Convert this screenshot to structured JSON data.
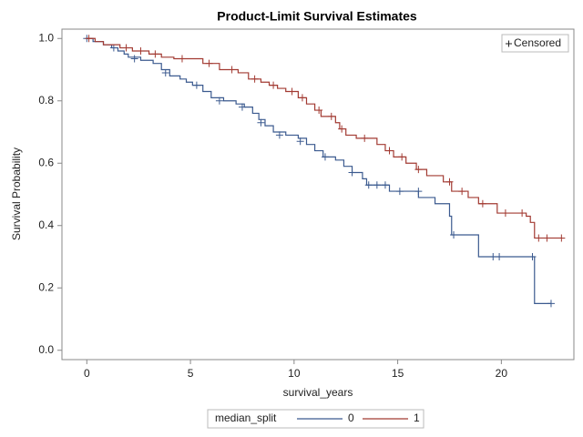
{
  "chart_data": {
    "type": "step",
    "title": "Product-Limit Survival Estimates",
    "x_label": "survival_years",
    "y_label": "Survival Probability",
    "legend_title": "median_split",
    "censored_label": "Censored",
    "xlim": [
      -1.2,
      23.5
    ],
    "ylim": [
      -0.03,
      1.03
    ],
    "xticks": [
      0,
      5,
      10,
      15,
      20
    ],
    "yticks": [
      {
        "value": 0,
        "label": "0.0"
      },
      0.2,
      0.4,
      0.6,
      0.8,
      {
        "value": 1,
        "label": "1.0"
      }
    ],
    "series": [
      {
        "name": "0",
        "color": "#3b5a8f",
        "x": [
          0,
          0.3,
          0.8,
          1.2,
          1.5,
          1.8,
          2.0,
          2.6,
          3.2,
          3.6,
          4.0,
          4.5,
          4.8,
          5.1,
          5.6,
          6.0,
          6.6,
          7.2,
          7.6,
          8.0,
          8.3,
          8.6,
          9.0,
          9.6,
          10.2,
          10.6,
          11.0,
          11.4,
          12.0,
          12.4,
          12.8,
          13.3,
          13.5,
          14.6,
          16.0,
          16.8,
          17.5,
          17.6,
          18.9,
          21.6
        ],
        "values": [
          1.0,
          0.99,
          0.98,
          0.97,
          0.96,
          0.95,
          0.94,
          0.93,
          0.92,
          0.9,
          0.88,
          0.87,
          0.86,
          0.85,
          0.83,
          0.81,
          0.8,
          0.79,
          0.78,
          0.76,
          0.74,
          0.72,
          0.7,
          0.69,
          0.68,
          0.66,
          0.64,
          0.62,
          0.61,
          0.59,
          0.57,
          0.55,
          0.53,
          0.51,
          0.49,
          0.47,
          0.43,
          0.37,
          0.3,
          0.15
        ],
        "censored": {
          "x": [
            0,
            1.3,
            2.3,
            3.8,
            5.3,
            6.4,
            7.5,
            8.4,
            9.3,
            10.3,
            11.5,
            12.8,
            13.6,
            14.0,
            14.4,
            15.1,
            16.0,
            17.7,
            19.6,
            19.9,
            21.5,
            22.4
          ],
          "values": [
            1.0,
            0.97,
            0.935,
            0.89,
            0.85,
            0.8,
            0.78,
            0.73,
            0.69,
            0.67,
            0.62,
            0.57,
            0.53,
            0.53,
            0.53,
            0.51,
            0.51,
            0.37,
            0.3,
            0.3,
            0.3,
            0.15
          ]
        }
      },
      {
        "name": "1",
        "color": "#a23a32",
        "x": [
          0,
          0.4,
          0.8,
          1.6,
          2.2,
          3.0,
          3.6,
          4.2,
          5.6,
          6.4,
          7.3,
          7.8,
          8.4,
          8.8,
          9.2,
          9.6,
          10.2,
          10.6,
          11.0,
          11.3,
          12.0,
          12.2,
          12.5,
          13.0,
          14.0,
          14.4,
          14.8,
          15.4,
          15.9,
          16.4,
          17.2,
          17.6,
          18.4,
          18.9,
          19.8,
          21.2,
          21.4,
          21.6
        ],
        "values": [
          1.0,
          0.99,
          0.98,
          0.97,
          0.96,
          0.95,
          0.94,
          0.935,
          0.92,
          0.9,
          0.89,
          0.87,
          0.86,
          0.85,
          0.84,
          0.83,
          0.81,
          0.79,
          0.77,
          0.75,
          0.73,
          0.71,
          0.69,
          0.68,
          0.66,
          0.64,
          0.62,
          0.6,
          0.58,
          0.56,
          0.54,
          0.51,
          0.49,
          0.47,
          0.44,
          0.43,
          0.41,
          0.36
        ],
        "censored": {
          "x": [
            0.1,
            1.9,
            2.6,
            3.3,
            4.6,
            5.9,
            7.0,
            8.1,
            9.0,
            9.9,
            10.4,
            11.2,
            11.8,
            12.3,
            13.4,
            14.6,
            15.2,
            16.0,
            17.5,
            18.1,
            19.1,
            20.2,
            21.0,
            21.8,
            22.2,
            22.9
          ],
          "values": [
            1.0,
            0.97,
            0.96,
            0.95,
            0.935,
            0.92,
            0.9,
            0.87,
            0.85,
            0.83,
            0.81,
            0.77,
            0.75,
            0.71,
            0.68,
            0.64,
            0.62,
            0.58,
            0.54,
            0.51,
            0.47,
            0.44,
            0.44,
            0.36,
            0.36,
            0.36
          ]
        }
      }
    ]
  }
}
